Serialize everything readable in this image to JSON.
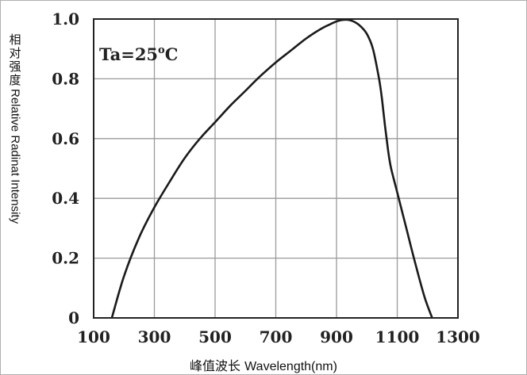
{
  "chart_data": {
    "type": "line",
    "title": "",
    "ylabel_zh": "相对强度",
    "ylabel_en": "Relative Radinat Intensity",
    "xlabel_zh": "峰值波长",
    "xlabel_en": "Wavelength(nm)",
    "annotation": {
      "text": "Ta=25",
      "degree": "o",
      "unit": "C"
    },
    "xlim": [
      100,
      1300
    ],
    "ylim": [
      0,
      1.0
    ],
    "xticks": [
      "100",
      "300",
      "500",
      "700",
      "900",
      "1100",
      "1300"
    ],
    "yticks": [
      "0",
      "0.2",
      "0.4",
      "0.6",
      "0.8",
      "1.0"
    ],
    "grid": true,
    "series": [
      {
        "x": [
          160,
          200,
          250,
          300,
          350,
          400,
          450,
          500,
          550,
          600,
          650,
          700,
          750,
          800,
          850,
          880,
          900,
          920,
          940,
          960,
          980,
          1000,
          1020,
          1040,
          1050,
          1060,
          1070,
          1080,
          1100,
          1130,
          1160,
          1190,
          1215
        ],
        "y": [
          0.0,
          0.14,
          0.27,
          0.37,
          0.455,
          0.535,
          0.6,
          0.655,
          0.71,
          0.76,
          0.81,
          0.855,
          0.895,
          0.935,
          0.968,
          0.983,
          0.992,
          0.997,
          0.997,
          0.99,
          0.975,
          0.95,
          0.9,
          0.8,
          0.73,
          0.64,
          0.56,
          0.5,
          0.42,
          0.3,
          0.18,
          0.07,
          0.0
        ]
      }
    ]
  }
}
